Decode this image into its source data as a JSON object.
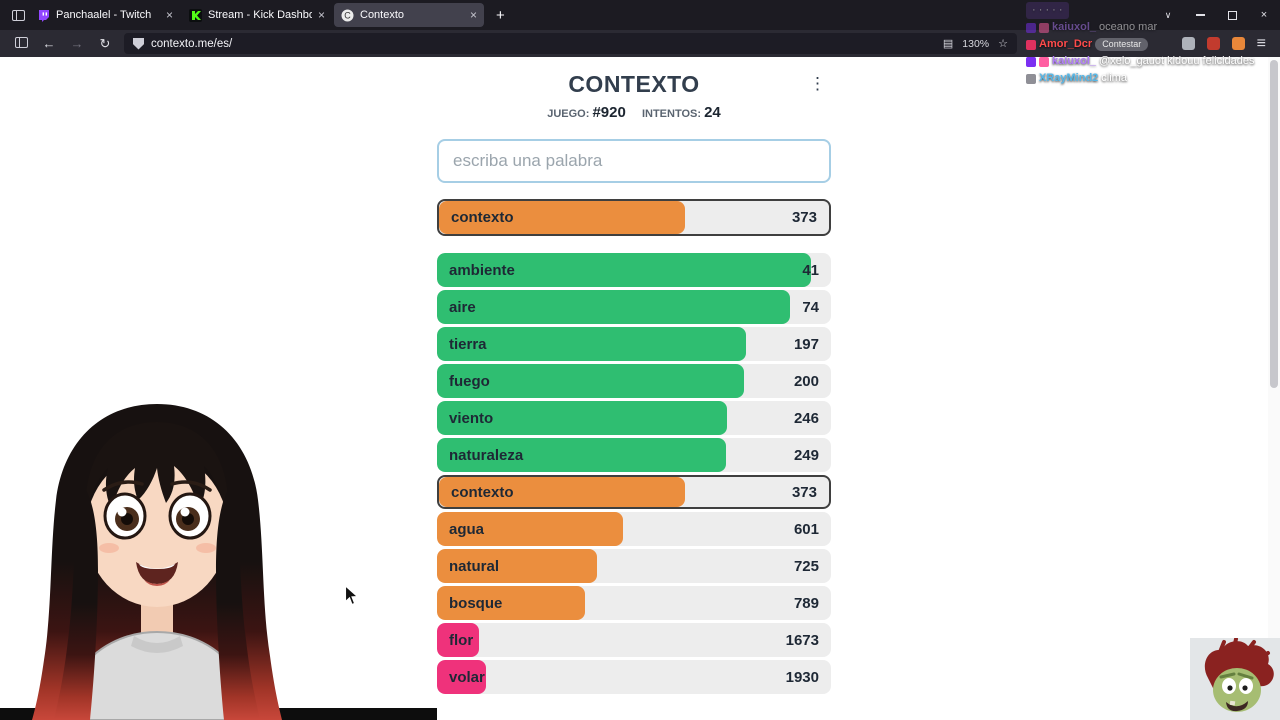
{
  "window": {
    "controls": {
      "tab_list": "∨",
      "minimize": "",
      "close": "×"
    }
  },
  "browser": {
    "tabs": [
      {
        "label": "Panchaalel - Twitch"
      },
      {
        "label": "Stream - Kick Dashboard"
      },
      {
        "label": "Contexto"
      }
    ],
    "url": "contexto.me/es/",
    "zoom_level": "130%"
  },
  "icons": {
    "back": "←",
    "forward": "→",
    "reload": "↻",
    "reader_mode": "▤",
    "bookmark_star": "☆",
    "menu": "≡",
    "new_tab": "+",
    "close_tab": "×",
    "kebab": "⋮"
  },
  "game": {
    "title": "CONTEXTO",
    "game_label": "JUEGO:",
    "game_number": "#920",
    "attempts_label": "INTENTOS:",
    "attempts_value": "24",
    "input_placeholder": "escriba una palabra",
    "colors": {
      "green": "#2fbe71",
      "orange": "#eb8e3e",
      "pink": "#ef327b",
      "track": "#ededed",
      "highlight_border": "#3f3f3f"
    },
    "pinned_guess": {
      "word": "contexto",
      "rank": "373",
      "fraction": 0.63,
      "color": "orange",
      "highlight": true
    },
    "guesses": [
      {
        "word": "ambiente",
        "rank": "41",
        "fraction": 0.949,
        "color": "green"
      },
      {
        "word": "aire",
        "rank": "74",
        "fraction": 0.896,
        "color": "green"
      },
      {
        "word": "tierra",
        "rank": "197",
        "fraction": 0.784,
        "color": "green"
      },
      {
        "word": "fuego",
        "rank": "200",
        "fraction": 0.779,
        "color": "green"
      },
      {
        "word": "viento",
        "rank": "246",
        "fraction": 0.736,
        "color": "green"
      },
      {
        "word": "naturaleza",
        "rank": "249",
        "fraction": 0.733,
        "color": "green"
      },
      {
        "word": "contexto",
        "rank": "373",
        "fraction": 0.63,
        "color": "orange",
        "highlight": true
      },
      {
        "word": "agua",
        "rank": "601",
        "fraction": 0.472,
        "color": "orange"
      },
      {
        "word": "natural",
        "rank": "725",
        "fraction": 0.406,
        "color": "orange"
      },
      {
        "word": "bosque",
        "rank": "789",
        "fraction": 0.376,
        "color": "orange"
      },
      {
        "word": "flor",
        "rank": "1673",
        "fraction": 0.107,
        "color": "pink"
      },
      {
        "word": "volar",
        "rank": "1930",
        "fraction": 0.125,
        "color": "pink"
      }
    ]
  },
  "chat": {
    "messages": [
      {
        "user": "",
        "user_color": "#ffffff",
        "badges": [],
        "text": "· · · · ·",
        "highlight": true,
        "faded": true
      },
      {
        "user": "kaiuxol_",
        "user_color": "#b07cf8",
        "badges": [
          "#7b2ff2",
          "#ff5fa2"
        ],
        "text": "oceano mar",
        "faded": true
      },
      {
        "user": "Amor_Dcr",
        "user_color": "#ff4b4b",
        "badges": [
          "#e0315f"
        ],
        "text": "",
        "pill": "Contestar"
      },
      {
        "user": "kaiuxol_",
        "user_color": "#b07cf8",
        "badges": [
          "#7b2ff2",
          "#ff5fa2"
        ],
        "text": "@xelo_gauot kidouu felicidades"
      },
      {
        "user": "XRayMind2",
        "user_color": "#57b8e8",
        "badges": [
          "#8f8f96"
        ],
        "text": "clima"
      }
    ]
  }
}
